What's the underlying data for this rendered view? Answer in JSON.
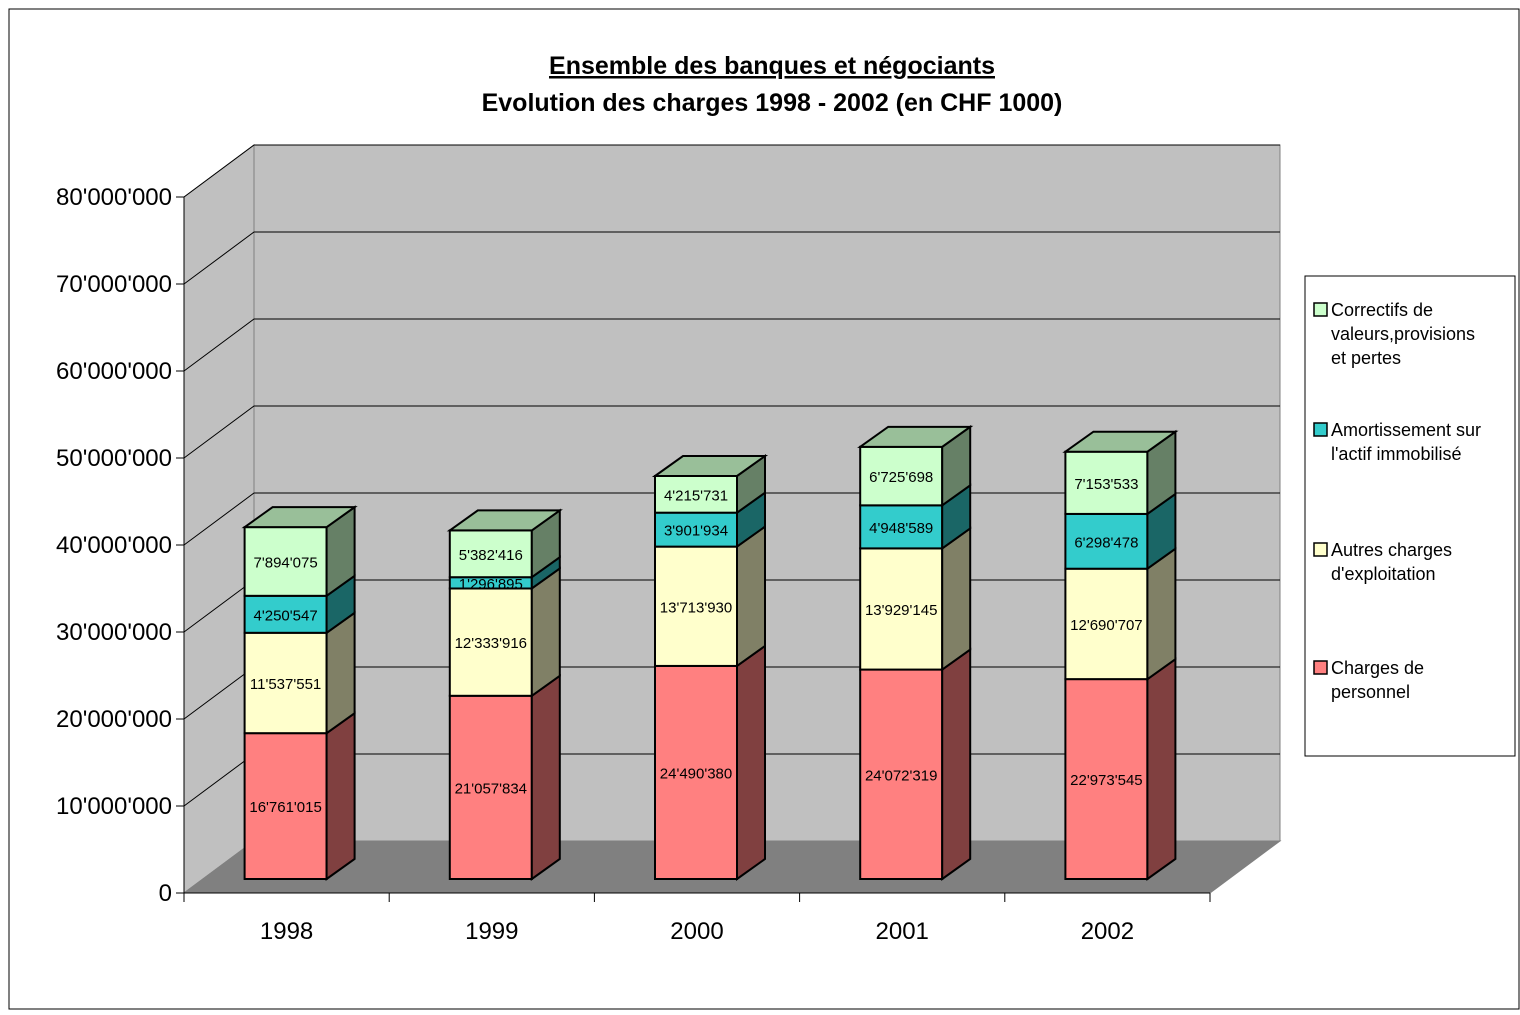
{
  "chart_data": {
    "type": "bar",
    "stacked": true,
    "three_d": true,
    "title": "Ensemble des banques et négociants",
    "subtitle": "Evolution des charges 1998 - 2002 (en CHF 1000)",
    "categories": [
      "1998",
      "1999",
      "2000",
      "2001",
      "2002"
    ],
    "series": [
      {
        "name": "Charges de personnel",
        "name_lines": [
          "Charges de",
          "personnel"
        ],
        "values": [
          16761015,
          21057834,
          24490380,
          24072319,
          22973545
        ],
        "labels": [
          "16'761'015",
          "21'057'834",
          "24'490'380",
          "24'072'319",
          "22'973'545"
        ],
        "color": "#ff8080"
      },
      {
        "name": "Autres charges d'exploitation",
        "name_lines": [
          "Autres charges",
          "d'exploitation"
        ],
        "values": [
          11537551,
          12333916,
          13713930,
          13929145,
          12690707
        ],
        "labels": [
          "11'537'551",
          "12'333'916",
          "13'713'930",
          "13'929'145",
          "12'690'707"
        ],
        "color": "#ffffcc"
      },
      {
        "name": "Amortissement sur l'actif immobilisé",
        "name_lines": [
          "Amortissement sur",
          "l'actif immobilisé"
        ],
        "values": [
          4250547,
          1296895,
          3901934,
          4948589,
          6298478
        ],
        "labels": [
          "4'250'547",
          "1'296'895",
          "3'901'934",
          "4'948'589",
          "6'298'478"
        ],
        "color": "#33cccc"
      },
      {
        "name": "Correctifs de valeurs,provisions et pertes",
        "name_lines": [
          "Correctifs de",
          "valeurs,provisions",
          "et pertes"
        ],
        "values": [
          7894075,
          5382416,
          4215731,
          6725698,
          7153533
        ],
        "labels": [
          "7'894'075",
          "5'382'416",
          "4'215'731",
          "6'725'698",
          "7'153'533"
        ],
        "color": "#ccffcc"
      }
    ],
    "ylim": [
      0,
      80000000
    ],
    "yticks": [
      0,
      10000000,
      20000000,
      30000000,
      40000000,
      50000000,
      60000000,
      70000000,
      80000000
    ],
    "ytick_labels": [
      "0",
      "10'000'000",
      "20'000'000",
      "30'000'000",
      "40'000'000",
      "50'000'000",
      "60'000'000",
      "70'000'000",
      "80'000'000"
    ],
    "grid": true,
    "legend_position": "right",
    "wall_color": "#c0c0c0",
    "floor_color": "#808080",
    "xlabel": "",
    "ylabel": ""
  }
}
